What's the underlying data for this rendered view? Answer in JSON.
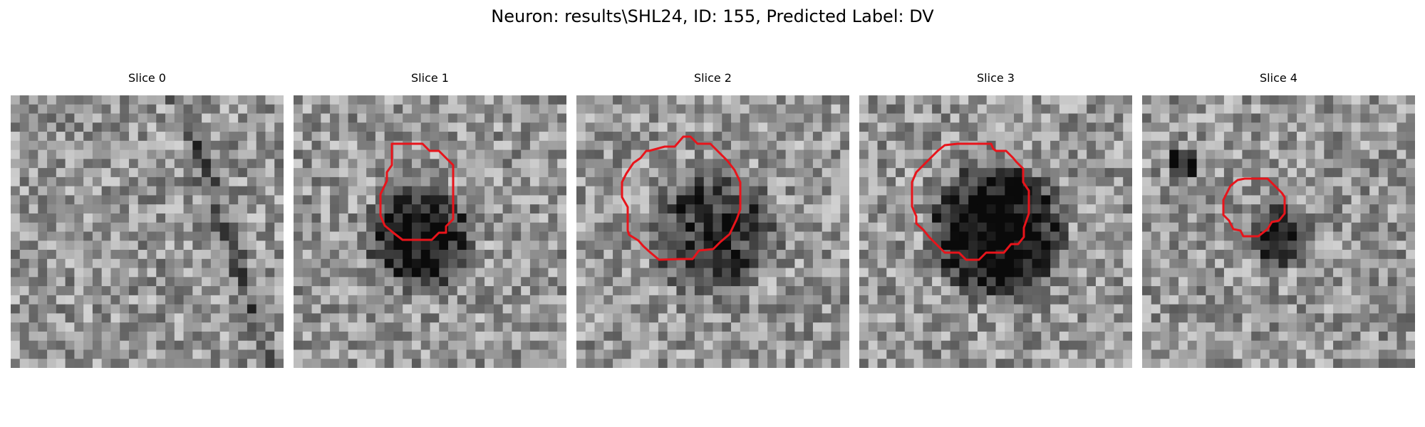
{
  "figure": {
    "title": "Neuron: results\\SHL24, ID: 155, Predicted Label: DV"
  },
  "colors": {
    "contour": "#e8141b",
    "colormap": "gray"
  },
  "panels": [
    {
      "title": "Slice 0",
      "has_contour": false
    },
    {
      "title": "Slice 1",
      "has_contour": true
    },
    {
      "title": "Slice 2",
      "has_contour": true
    },
    {
      "title": "Slice 3",
      "has_contour": true
    },
    {
      "title": "Slice 4",
      "has_contour": true
    }
  ]
}
